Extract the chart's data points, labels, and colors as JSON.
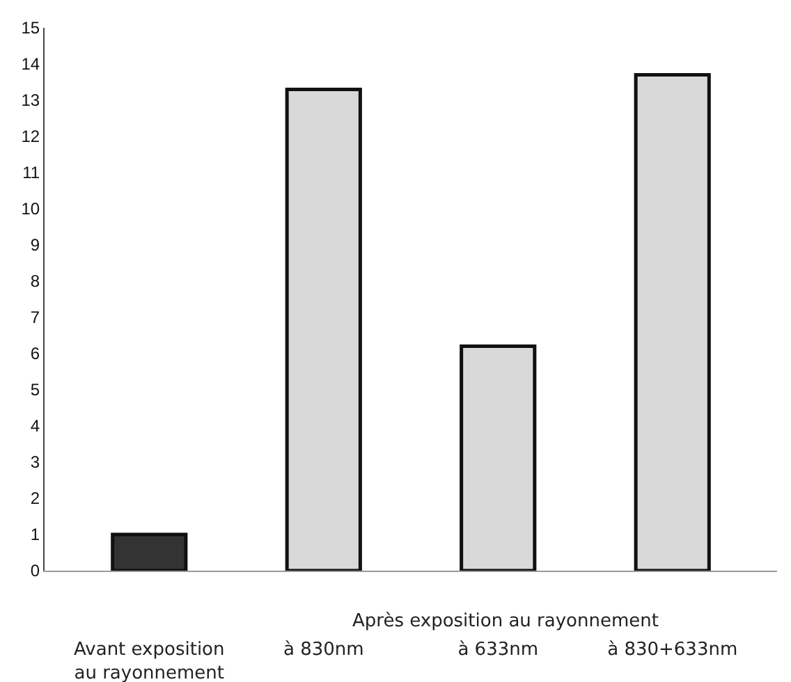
{
  "chart_data": {
    "type": "bar",
    "categories": [
      "Avant exposition au rayonnement",
      "à 830nm",
      "à 633nm",
      "à 830+633nm"
    ],
    "values": [
      1.0,
      13.3,
      6.2,
      13.7
    ],
    "colors": [
      "#333333",
      "#d9d9d9",
      "#d9d9d9",
      "#d9d9d9"
    ],
    "ylim": [
      0,
      15
    ],
    "yticks": [
      0,
      1,
      2,
      3,
      4,
      5,
      6,
      7,
      8,
      9,
      10,
      11,
      12,
      13,
      14,
      15
    ],
    "annotations": [
      "Après exposition au rayonnement"
    ]
  }
}
